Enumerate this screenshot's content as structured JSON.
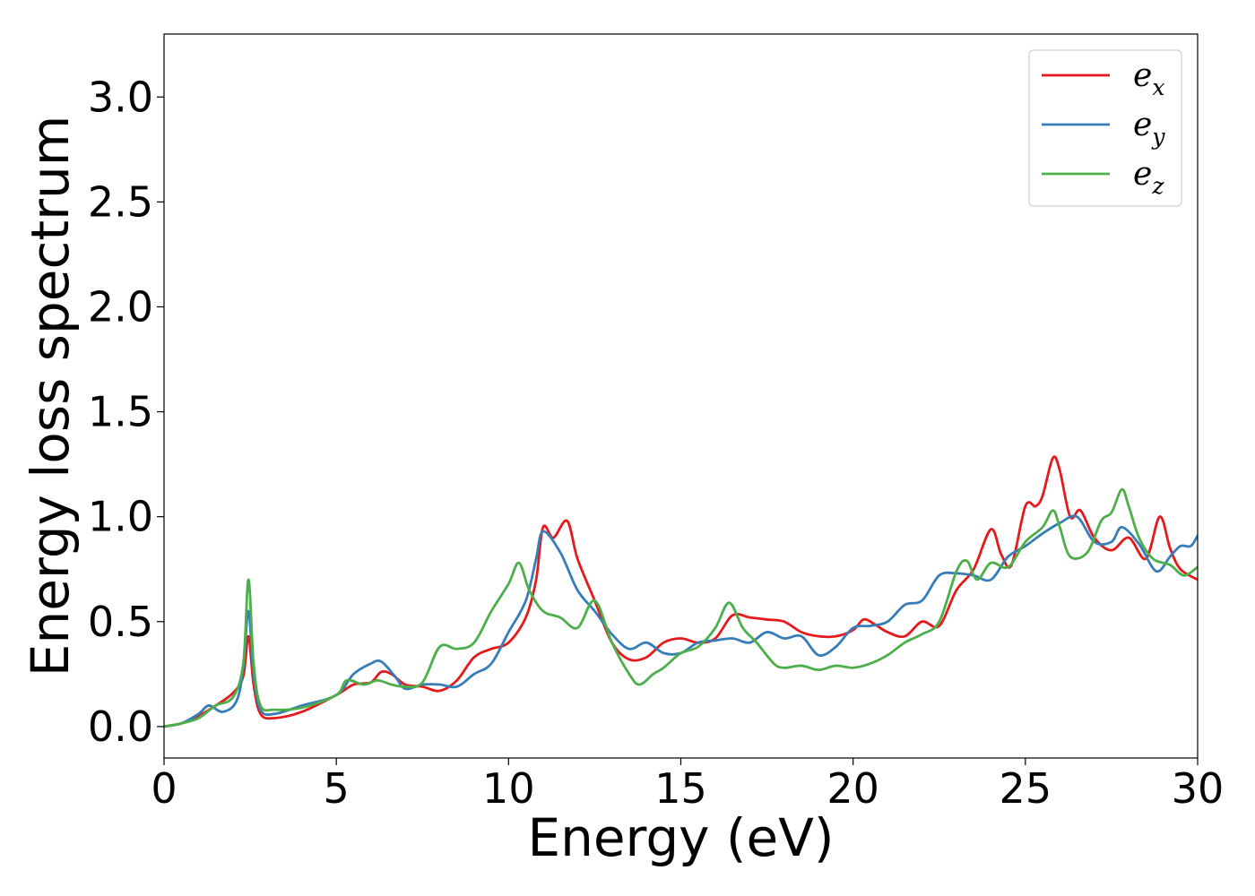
{
  "chart_data": {
    "type": "line",
    "title": "",
    "xlabel": "Energy (eV)",
    "ylabel": "Energy loss spectrum",
    "xlim": [
      0,
      30
    ],
    "ylim": [
      -0.15,
      3.3
    ],
    "x_ticks": [
      0,
      5,
      10,
      15,
      20,
      25,
      30
    ],
    "y_ticks": [
      0.0,
      0.5,
      1.0,
      1.5,
      2.0,
      2.5,
      3.0
    ],
    "x_tick_labels": [
      "0",
      "5",
      "10",
      "15",
      "20",
      "25",
      "30"
    ],
    "y_tick_labels": [
      "0.0",
      "0.5",
      "1.0",
      "1.5",
      "2.0",
      "2.5",
      "3.0"
    ],
    "grid": false,
    "legend_position": "top-right",
    "series": [
      {
        "name": "e",
        "subscript": "x",
        "color": "#e41a1c",
        "points": [
          [
            0,
            0
          ],
          [
            0.5,
            0.015
          ],
          [
            1.0,
            0.05
          ],
          [
            1.5,
            0.1
          ],
          [
            2.0,
            0.16
          ],
          [
            2.3,
            0.24
          ],
          [
            2.45,
            0.43
          ],
          [
            2.6,
            0.2
          ],
          [
            2.8,
            0.06
          ],
          [
            3.2,
            0.04
          ],
          [
            4.0,
            0.07
          ],
          [
            5.0,
            0.15
          ],
          [
            5.5,
            0.2
          ],
          [
            6.0,
            0.21
          ],
          [
            6.3,
            0.26
          ],
          [
            6.6,
            0.25
          ],
          [
            7.0,
            0.2
          ],
          [
            7.5,
            0.19
          ],
          [
            8.0,
            0.17
          ],
          [
            8.5,
            0.22
          ],
          [
            9.0,
            0.33
          ],
          [
            9.5,
            0.37
          ],
          [
            10.0,
            0.4
          ],
          [
            10.5,
            0.52
          ],
          [
            10.8,
            0.7
          ],
          [
            11.0,
            0.95
          ],
          [
            11.3,
            0.9
          ],
          [
            11.7,
            0.98
          ],
          [
            12.0,
            0.8
          ],
          [
            12.5,
            0.6
          ],
          [
            13.0,
            0.4
          ],
          [
            13.5,
            0.32
          ],
          [
            14.0,
            0.33
          ],
          [
            14.5,
            0.4
          ],
          [
            15.0,
            0.42
          ],
          [
            15.5,
            0.4
          ],
          [
            16.0,
            0.42
          ],
          [
            16.5,
            0.53
          ],
          [
            17.0,
            0.52
          ],
          [
            17.5,
            0.51
          ],
          [
            18.0,
            0.5
          ],
          [
            18.5,
            0.45
          ],
          [
            19.0,
            0.43
          ],
          [
            19.5,
            0.43
          ],
          [
            20.0,
            0.46
          ],
          [
            20.3,
            0.51
          ],
          [
            20.6,
            0.49
          ],
          [
            21.0,
            0.45
          ],
          [
            21.5,
            0.43
          ],
          [
            22.0,
            0.5
          ],
          [
            22.5,
            0.48
          ],
          [
            23.0,
            0.65
          ],
          [
            23.5,
            0.75
          ],
          [
            24.0,
            0.94
          ],
          [
            24.3,
            0.82
          ],
          [
            24.6,
            0.77
          ],
          [
            25.0,
            1.05
          ],
          [
            25.3,
            1.05
          ],
          [
            25.5,
            1.1
          ],
          [
            25.8,
            1.28
          ],
          [
            26.0,
            1.22
          ],
          [
            26.3,
            1.0
          ],
          [
            26.6,
            1.03
          ],
          [
            27.0,
            0.9
          ],
          [
            27.5,
            0.84
          ],
          [
            28.0,
            0.9
          ],
          [
            28.5,
            0.8
          ],
          [
            28.9,
            1.0
          ],
          [
            29.2,
            0.85
          ],
          [
            29.5,
            0.75
          ],
          [
            30.0,
            0.7
          ]
        ]
      },
      {
        "name": "e",
        "subscript": "y",
        "color": "#377eb8",
        "points": [
          [
            0,
            0
          ],
          [
            0.5,
            0.015
          ],
          [
            1.0,
            0.06
          ],
          [
            1.3,
            0.1
          ],
          [
            1.7,
            0.07
          ],
          [
            2.1,
            0.12
          ],
          [
            2.3,
            0.28
          ],
          [
            2.45,
            0.55
          ],
          [
            2.6,
            0.25
          ],
          [
            2.8,
            0.08
          ],
          [
            3.2,
            0.06
          ],
          [
            4.0,
            0.1
          ],
          [
            5.0,
            0.15
          ],
          [
            5.5,
            0.25
          ],
          [
            6.0,
            0.3
          ],
          [
            6.3,
            0.31
          ],
          [
            6.7,
            0.24
          ],
          [
            7.0,
            0.18
          ],
          [
            7.5,
            0.2
          ],
          [
            8.0,
            0.2
          ],
          [
            8.5,
            0.19
          ],
          [
            9.0,
            0.25
          ],
          [
            9.5,
            0.3
          ],
          [
            10.0,
            0.45
          ],
          [
            10.5,
            0.6
          ],
          [
            10.8,
            0.8
          ],
          [
            11.0,
            0.93
          ],
          [
            11.5,
            0.83
          ],
          [
            12.0,
            0.65
          ],
          [
            12.5,
            0.55
          ],
          [
            13.0,
            0.44
          ],
          [
            13.5,
            0.37
          ],
          [
            14.0,
            0.4
          ],
          [
            14.5,
            0.35
          ],
          [
            15.0,
            0.35
          ],
          [
            15.5,
            0.4
          ],
          [
            16.0,
            0.41
          ],
          [
            16.5,
            0.42
          ],
          [
            17.0,
            0.4
          ],
          [
            17.5,
            0.45
          ],
          [
            18.0,
            0.42
          ],
          [
            18.5,
            0.43
          ],
          [
            19.0,
            0.34
          ],
          [
            19.5,
            0.38
          ],
          [
            20.0,
            0.47
          ],
          [
            20.5,
            0.48
          ],
          [
            21.0,
            0.5
          ],
          [
            21.5,
            0.58
          ],
          [
            22.0,
            0.6
          ],
          [
            22.5,
            0.72
          ],
          [
            23.0,
            0.73
          ],
          [
            23.5,
            0.72
          ],
          [
            24.0,
            0.7
          ],
          [
            24.5,
            0.81
          ],
          [
            25.0,
            0.86
          ],
          [
            25.5,
            0.92
          ],
          [
            26.0,
            0.97
          ],
          [
            26.5,
            1.0
          ],
          [
            27.0,
            0.88
          ],
          [
            27.5,
            0.88
          ],
          [
            27.8,
            0.95
          ],
          [
            28.3,
            0.87
          ],
          [
            28.8,
            0.74
          ],
          [
            29.2,
            0.81
          ],
          [
            29.5,
            0.86
          ],
          [
            29.8,
            0.86
          ],
          [
            30.0,
            0.91
          ]
        ]
      },
      {
        "name": "e",
        "subscript": "z",
        "color": "#4daf4a",
        "points": [
          [
            0,
            0
          ],
          [
            0.5,
            0.015
          ],
          [
            1.0,
            0.04
          ],
          [
            1.5,
            0.1
          ],
          [
            2.0,
            0.14
          ],
          [
            2.3,
            0.3
          ],
          [
            2.45,
            0.7
          ],
          [
            2.6,
            0.3
          ],
          [
            2.8,
            0.1
          ],
          [
            3.2,
            0.08
          ],
          [
            4.0,
            0.09
          ],
          [
            5.0,
            0.15
          ],
          [
            5.3,
            0.22
          ],
          [
            5.8,
            0.2
          ],
          [
            6.2,
            0.22
          ],
          [
            6.6,
            0.2
          ],
          [
            7.0,
            0.19
          ],
          [
            7.5,
            0.21
          ],
          [
            8.0,
            0.38
          ],
          [
            8.5,
            0.37
          ],
          [
            9.0,
            0.4
          ],
          [
            9.5,
            0.55
          ],
          [
            10.0,
            0.68
          ],
          [
            10.3,
            0.78
          ],
          [
            10.6,
            0.65
          ],
          [
            11.0,
            0.55
          ],
          [
            11.5,
            0.52
          ],
          [
            12.0,
            0.47
          ],
          [
            12.5,
            0.6
          ],
          [
            13.0,
            0.4
          ],
          [
            13.5,
            0.25
          ],
          [
            13.8,
            0.2
          ],
          [
            14.2,
            0.25
          ],
          [
            14.5,
            0.28
          ],
          [
            15.0,
            0.35
          ],
          [
            15.5,
            0.38
          ],
          [
            16.0,
            0.47
          ],
          [
            16.4,
            0.59
          ],
          [
            16.8,
            0.47
          ],
          [
            17.2,
            0.4
          ],
          [
            17.7,
            0.3
          ],
          [
            18.0,
            0.28
          ],
          [
            18.5,
            0.29
          ],
          [
            19.0,
            0.27
          ],
          [
            19.5,
            0.29
          ],
          [
            20.0,
            0.28
          ],
          [
            20.5,
            0.3
          ],
          [
            21.0,
            0.34
          ],
          [
            21.5,
            0.4
          ],
          [
            22.0,
            0.44
          ],
          [
            22.5,
            0.5
          ],
          [
            23.0,
            0.74
          ],
          [
            23.3,
            0.79
          ],
          [
            23.6,
            0.7
          ],
          [
            24.0,
            0.78
          ],
          [
            24.5,
            0.76
          ],
          [
            25.0,
            0.88
          ],
          [
            25.5,
            0.95
          ],
          [
            25.8,
            1.03
          ],
          [
            26.0,
            0.95
          ],
          [
            26.3,
            0.81
          ],
          [
            26.8,
            0.83
          ],
          [
            27.2,
            0.98
          ],
          [
            27.5,
            1.02
          ],
          [
            27.8,
            1.13
          ],
          [
            28.0,
            1.05
          ],
          [
            28.3,
            0.9
          ],
          [
            28.7,
            0.8
          ],
          [
            29.2,
            0.77
          ],
          [
            29.6,
            0.72
          ],
          [
            30.0,
            0.76
          ]
        ]
      }
    ]
  }
}
